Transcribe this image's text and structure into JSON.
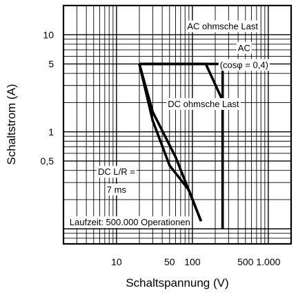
{
  "chart_data": {
    "type": "line",
    "xlabel": "Schaltspannung (V)",
    "ylabel": "Schaltstrom (A)",
    "xscale": "log",
    "yscale": "log",
    "xlim": [
      2,
      2000
    ],
    "ylim": [
      0.07,
      20
    ],
    "x_ticks": [
      {
        "value": 10,
        "label": "10"
      },
      {
        "value": 50,
        "label": "50"
      },
      {
        "value": 100,
        "label": "100"
      },
      {
        "value": 500,
        "label": "500"
      },
      {
        "value": 1000,
        "label": "1.000"
      }
    ],
    "y_ticks": [
      {
        "value": 10,
        "label": "10"
      },
      {
        "value": 5,
        "label": "5"
      },
      {
        "value": 1,
        "label": "1"
      },
      {
        "value": 0.5,
        "label": "0,5"
      }
    ],
    "grid": true,
    "series": [
      {
        "name": "AC ohmsche Last",
        "points": [
          [
            20,
            5
          ],
          [
            250,
            5
          ],
          [
            250,
            0.1
          ]
        ]
      },
      {
        "name": "AC (cosφ = 0,4)",
        "points": [
          [
            20,
            5
          ],
          [
            150,
            5
          ],
          [
            250,
            2.1
          ],
          [
            250,
            0.1
          ]
        ]
      },
      {
        "name": "DC ohmsche Last",
        "points": [
          [
            20,
            5
          ],
          [
            30,
            1.6
          ],
          [
            60,
            0.55
          ],
          [
            130,
            0.12
          ]
        ]
      },
      {
        "name": "DC L/R = 7 ms",
        "points": [
          [
            20,
            5
          ],
          [
            30,
            1.3
          ],
          [
            50,
            0.45
          ],
          [
            90,
            0.25
          ],
          [
            130,
            0.12
          ]
        ]
      }
    ],
    "annotations": [
      {
        "text": "AC ohmsche Last",
        "at": [
          250,
          12
        ]
      },
      {
        "text": "AC",
        "at": [
          480,
          7.2
        ]
      },
      {
        "text": "(cosφ = 0,4)",
        "at": [
          480,
          4.8
        ]
      },
      {
        "text": "DC ohmsche Last",
        "at": [
          140,
          1.9
        ]
      },
      {
        "text": "DC L/R =",
        "at": [
          10,
          0.38
        ]
      },
      {
        "text": "7 ms",
        "at": [
          10,
          0.25
        ]
      },
      {
        "text": "Laufzeit: 500.000 Operationen",
        "at": [
          15,
          0.115
        ]
      }
    ]
  }
}
